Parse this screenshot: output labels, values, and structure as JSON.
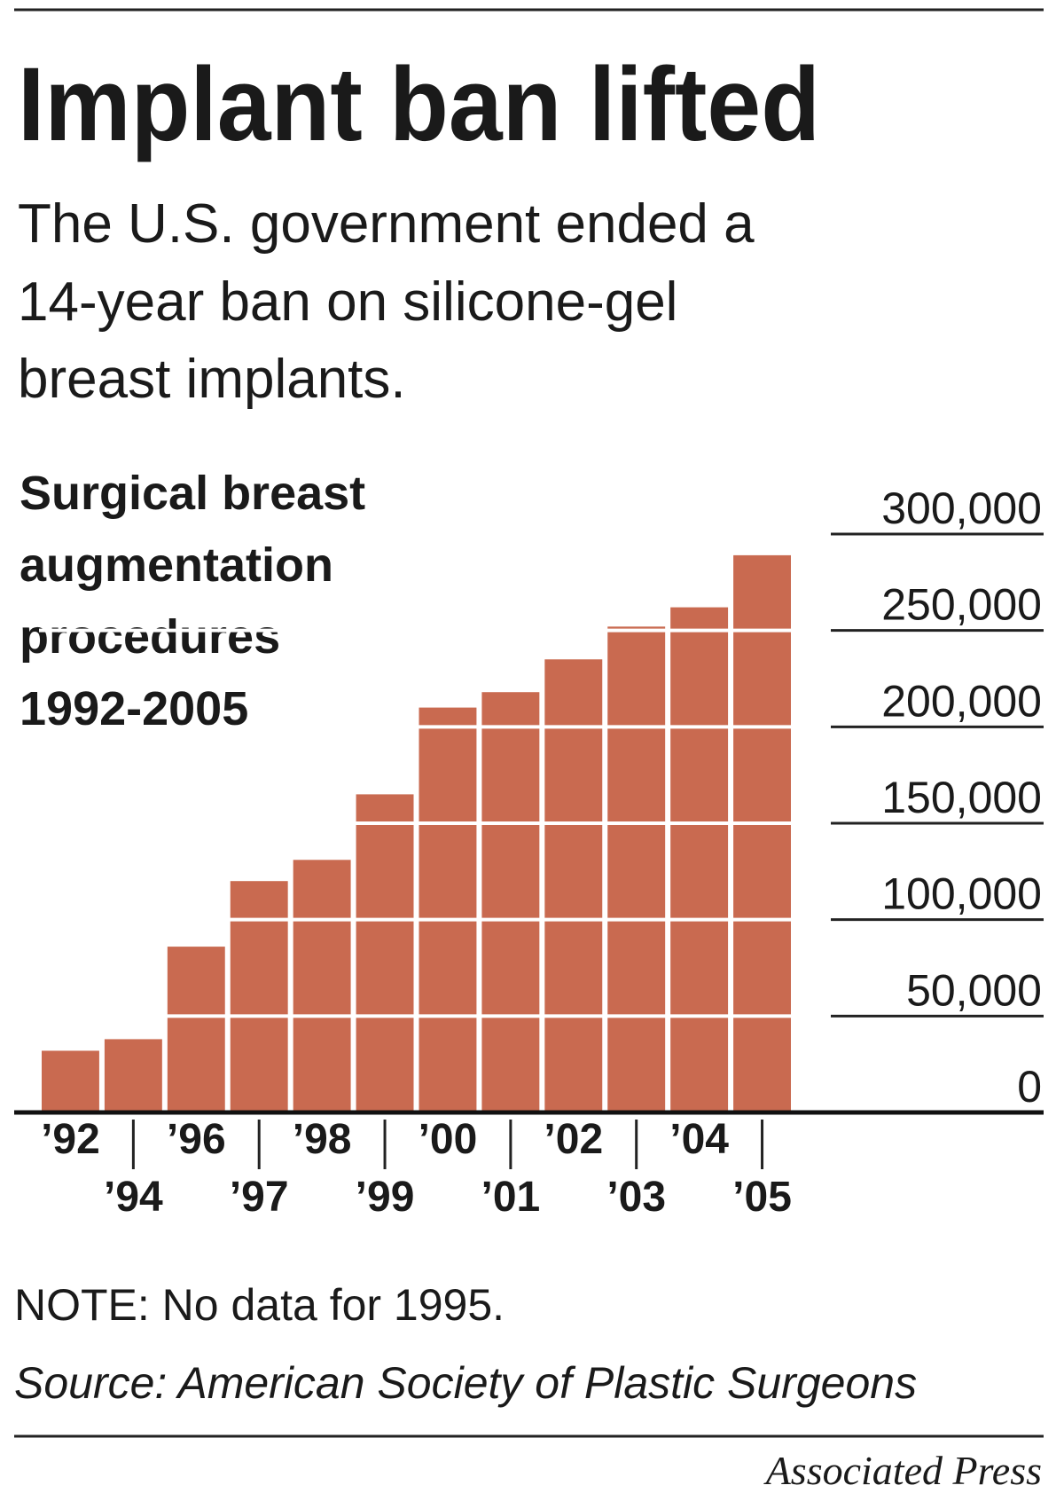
{
  "title": "Implant ban lifted",
  "subtitle": [
    "The U.S. government ended a",
    "14-year ban on silicone-gel",
    "breast implants."
  ],
  "chart_data": {
    "type": "bar",
    "title": [
      "Surgical breast",
      "augmentation",
      "procedures",
      "1992-2005"
    ],
    "categories": [
      "’92",
      "’94",
      "’96",
      "’97",
      "’98",
      "’99",
      "’00",
      "’01",
      "’02",
      "’03",
      "’04",
      "’05"
    ],
    "values": [
      32000,
      38000,
      86000,
      120000,
      131000,
      165000,
      210000,
      218000,
      235000,
      252000,
      262000,
      289000
    ],
    "color": "#c96a50",
    "ylim": [
      0,
      300000
    ],
    "yticks": [
      0,
      {
        "value": 50000,
        "label": "50,000"
      },
      {
        "value": 100000,
        "label": "100,000"
      },
      {
        "value": 150000,
        "label": "150,000"
      },
      {
        "value": 200000,
        "label": "200,000"
      },
      {
        "value": 250000,
        "label": "250,000"
      },
      {
        "value": 300000,
        "label": "300,000"
      }
    ],
    "grid": true
  },
  "note": "NOTE: No data for 1995.",
  "source": "Source: American Society of Plastic Surgeons",
  "credit": "Associated Press"
}
